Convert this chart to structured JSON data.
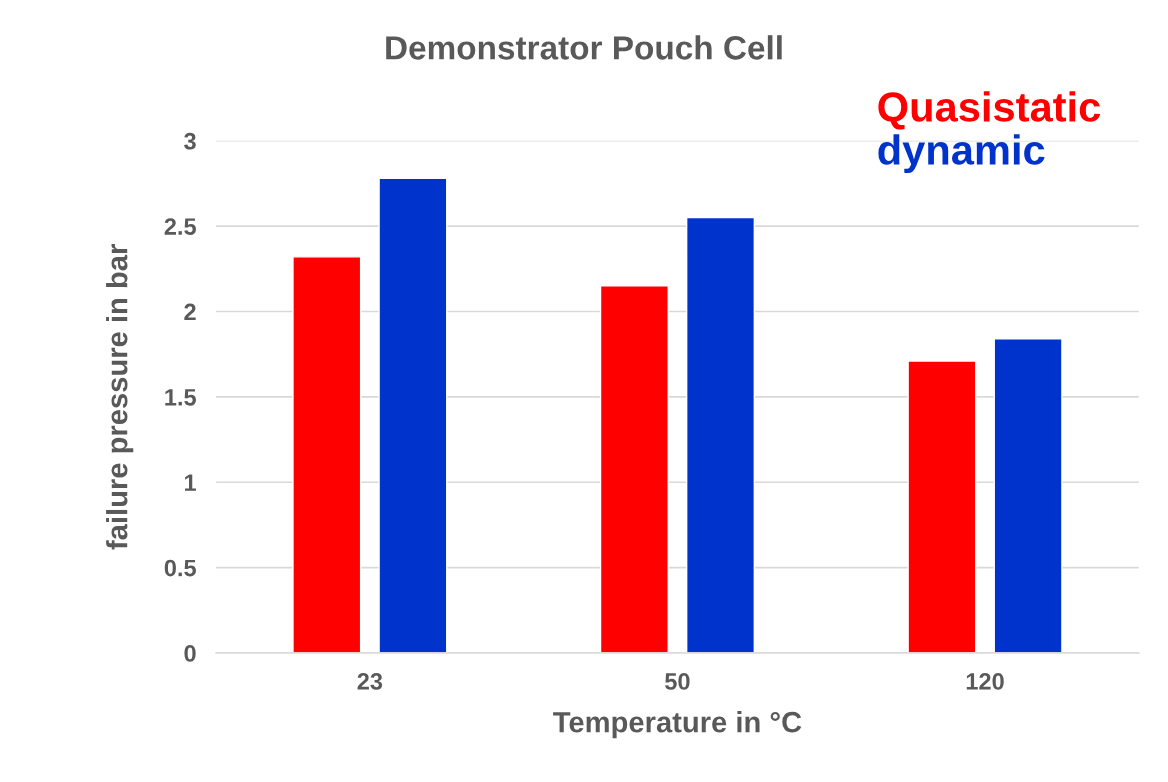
{
  "chart_data": {
    "type": "bar",
    "title": "Demonstrator Pouch Cell",
    "xlabel": "Temperature in °C",
    "ylabel": "failure pressure in bar",
    "categories": [
      "23",
      "50",
      "120"
    ],
    "series": [
      {
        "name": "Quasistatic",
        "color": "#ff0000",
        "values": [
          2.32,
          2.15,
          1.71
        ]
      },
      {
        "name": "dynamic",
        "color": "#0033cc",
        "values": [
          2.78,
          2.55,
          1.84
        ]
      }
    ],
    "ylim": [
      0,
      3
    ],
    "yticks": [
      0,
      0.5,
      1,
      1.5,
      2,
      2.5,
      3
    ],
    "grid": "y",
    "legend": "top right"
  }
}
